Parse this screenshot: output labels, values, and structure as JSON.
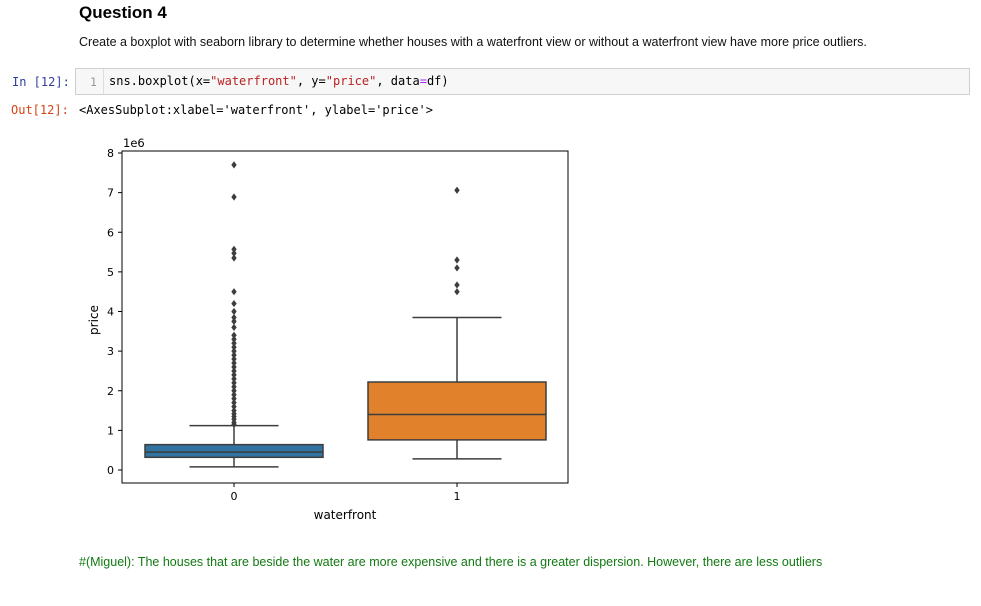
{
  "markdown": {
    "heading": "Question 4",
    "instruction": "Create a boxplot with seaborn library to determine whether houses with a waterfront view or without a waterfront view have more price outliers."
  },
  "cell": {
    "in_prompt": "In [12]:",
    "line_number": "1",
    "code_prefix": "sns.boxplot(x=",
    "code_x_value": "\"waterfront\"",
    "code_mid": ", y=",
    "code_y_value": "\"price\"",
    "code_data_kw": ", data",
    "code_eq": "=",
    "code_suffix": "df)",
    "out_prompt": "Out[12]:",
    "output_text": "<AxesSubplot:xlabel='waterfront', ylabel='price'>"
  },
  "chart_data": {
    "type": "box",
    "xlabel": "waterfront",
    "ylabel": "price",
    "y_scale_label": "1e6",
    "ylim": [
      -0.3,
      8.1
    ],
    "yticks": [
      0,
      1,
      2,
      3,
      4,
      5,
      6,
      7,
      8
    ],
    "categories": [
      "0",
      "1"
    ],
    "series": [
      {
        "category": "0",
        "color": "#3274a1",
        "whisker_low": 0.08,
        "q1": 0.32,
        "median": 0.45,
        "q3": 0.64,
        "whisker_high": 1.12,
        "outliers": [
          7.7,
          6.89,
          5.57,
          5.47,
          5.35,
          4.5,
          4.2,
          4.0,
          3.85,
          3.75,
          3.6,
          3.4,
          3.3,
          3.2,
          3.1,
          3.0,
          2.9,
          2.8,
          2.7,
          2.6,
          2.5,
          2.4,
          2.3,
          2.2,
          2.1,
          2.0,
          1.9,
          1.8,
          1.7,
          1.6,
          1.5,
          1.42,
          1.35,
          1.28,
          1.2,
          1.15
        ]
      },
      {
        "category": "1",
        "color": "#e1812c",
        "whisker_low": 0.28,
        "q1": 0.76,
        "median": 1.4,
        "q3": 2.22,
        "whisker_high": 3.85,
        "outliers": [
          7.06,
          5.3,
          5.1,
          4.67,
          4.5
        ]
      }
    ]
  },
  "comment": "#(Miguel): The houses that are beside the water are more expensive and there is a greater dispersion. However, there are less outliers"
}
